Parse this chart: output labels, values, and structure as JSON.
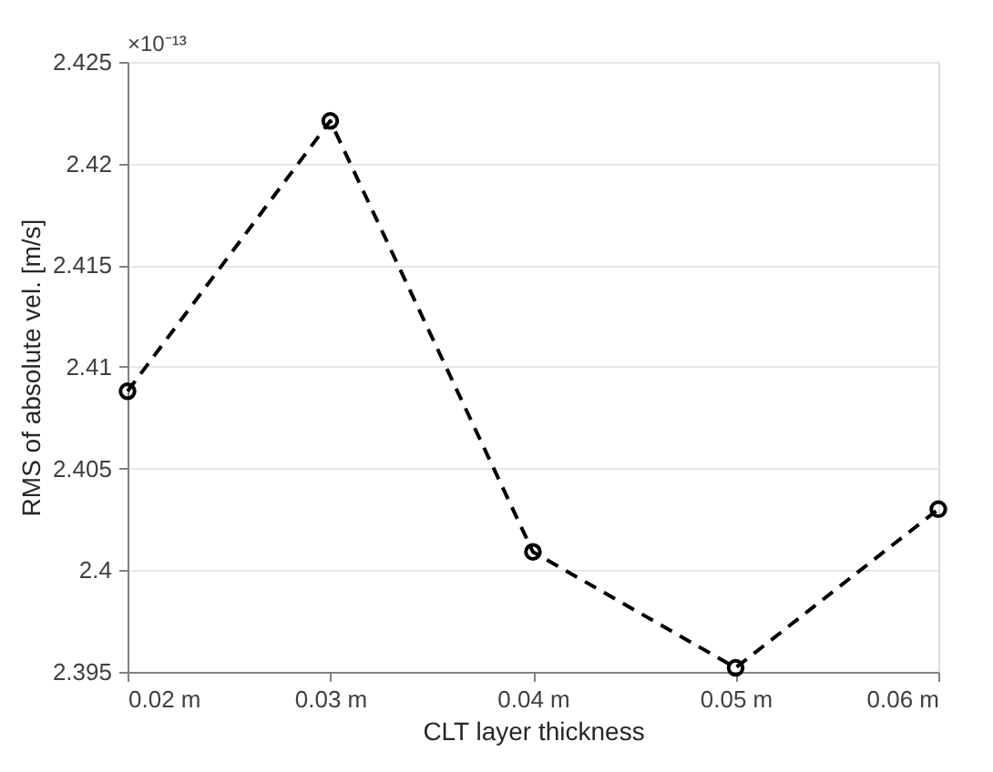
{
  "chart_data": {
    "type": "line",
    "xlabel": "CLT layer thickness",
    "ylabel": "RMS of absolute vel. [m/s]",
    "categories": [
      "0.02 m",
      "0.03 m",
      "0.04 m",
      "0.05 m",
      "0.06 m"
    ],
    "series": [
      {
        "color": "#000000",
        "values": [
          2.4088,
          2.4221,
          2.4009,
          2.3952,
          2.403
        ]
      }
    ],
    "ylim": [
      2.395,
      2.425
    ],
    "yticks": [
      2.395,
      2.4,
      2.405,
      2.41,
      2.415,
      2.42,
      2.425
    ],
    "annotations": [
      "×10⁻¹³"
    ],
    "grid": "y",
    "marker": "circle",
    "line_style": "dashed",
    "legend": false
  }
}
